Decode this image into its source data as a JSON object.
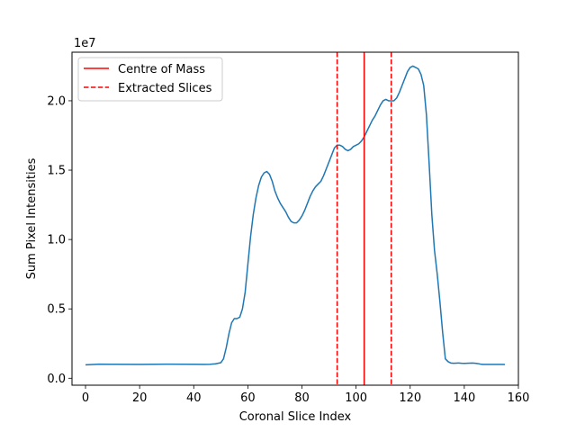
{
  "chart_data": {
    "type": "line",
    "title": "",
    "xlabel": "Coronal Slice Index",
    "ylabel": "Sum Pixel Intensities",
    "y_offset_label": "1e7",
    "y_scale": 10000000,
    "xlim": [
      -5,
      160
    ],
    "ylim": [
      -0.05,
      2.35
    ],
    "x_ticks": [
      0,
      20,
      40,
      60,
      80,
      100,
      120,
      140,
      160
    ],
    "y_ticks": [
      0.0,
      0.5,
      1.0,
      1.5,
      2.0
    ],
    "y_tick_labels": [
      "0.0",
      "0.5",
      "1.0",
      "1.5",
      "2.0"
    ],
    "grid": false,
    "legend_position": "top-left",
    "series": [
      {
        "color": "#1f77b4",
        "style": "solid",
        "x": [
          0,
          5,
          10,
          20,
          30,
          40,
          44,
          46,
          48,
          50,
          51,
          52,
          53,
          54,
          55,
          56,
          57,
          58,
          59,
          60,
          61,
          62,
          63,
          64,
          65,
          66,
          67,
          68,
          69,
          70,
          71,
          72,
          73,
          74,
          75,
          76,
          77,
          78,
          79,
          80,
          81,
          82,
          83,
          84,
          85,
          86,
          87,
          88,
          89,
          90,
          91,
          92,
          93,
          94,
          95,
          96,
          97,
          98,
          99,
          100,
          101,
          102,
          103,
          104,
          105,
          106,
          107,
          108,
          109,
          110,
          111,
          112,
          113,
          114,
          115,
          116,
          117,
          118,
          119,
          120,
          121,
          122,
          123,
          124,
          125,
          126,
          127,
          128,
          129,
          130,
          131,
          132,
          133,
          134,
          135,
          136,
          137,
          138,
          139,
          140,
          141,
          142,
          143,
          144,
          145,
          146,
          147,
          148,
          149,
          150,
          151,
          152,
          153,
          154,
          155
        ],
        "y": [
          0.097,
          0.102,
          0.101,
          0.1,
          0.102,
          0.101,
          0.1,
          0.101,
          0.104,
          0.112,
          0.14,
          0.22,
          0.32,
          0.4,
          0.43,
          0.43,
          0.44,
          0.5,
          0.62,
          0.82,
          1.02,
          1.18,
          1.3,
          1.39,
          1.45,
          1.48,
          1.49,
          1.47,
          1.42,
          1.35,
          1.3,
          1.26,
          1.23,
          1.2,
          1.16,
          1.13,
          1.12,
          1.12,
          1.14,
          1.17,
          1.21,
          1.26,
          1.31,
          1.35,
          1.38,
          1.4,
          1.42,
          1.46,
          1.51,
          1.56,
          1.61,
          1.66,
          1.68,
          1.68,
          1.67,
          1.65,
          1.64,
          1.65,
          1.67,
          1.68,
          1.69,
          1.71,
          1.74,
          1.78,
          1.82,
          1.86,
          1.89,
          1.93,
          1.97,
          2.0,
          2.01,
          2.0,
          2.0,
          2.0,
          2.02,
          2.06,
          2.11,
          2.16,
          2.21,
          2.24,
          2.25,
          2.24,
          2.23,
          2.19,
          2.11,
          1.9,
          1.55,
          1.18,
          0.92,
          0.75,
          0.55,
          0.33,
          0.14,
          0.12,
          0.11,
          0.108,
          0.109,
          0.11,
          0.108,
          0.107,
          0.108,
          0.109,
          0.11,
          0.108,
          0.106,
          0.102,
          0.1,
          0.1,
          0.1,
          0.1,
          0.1,
          0.1,
          0.1,
          0.1,
          0.099
        ]
      }
    ],
    "vlines": [
      {
        "label": "Centre of Mass",
        "x": 103,
        "color": "#ff0000",
        "style": "solid"
      },
      {
        "label": "Extracted Slices",
        "x": 93,
        "color": "#ff0000",
        "style": "dashed"
      },
      {
        "label": "",
        "x": 113,
        "color": "#ff0000",
        "style": "dashed"
      }
    ],
    "legend": [
      {
        "label": "Centre of Mass",
        "color": "#ff0000",
        "style": "solid"
      },
      {
        "label": "Extracted Slices",
        "color": "#ff0000",
        "style": "dashed"
      }
    ]
  }
}
